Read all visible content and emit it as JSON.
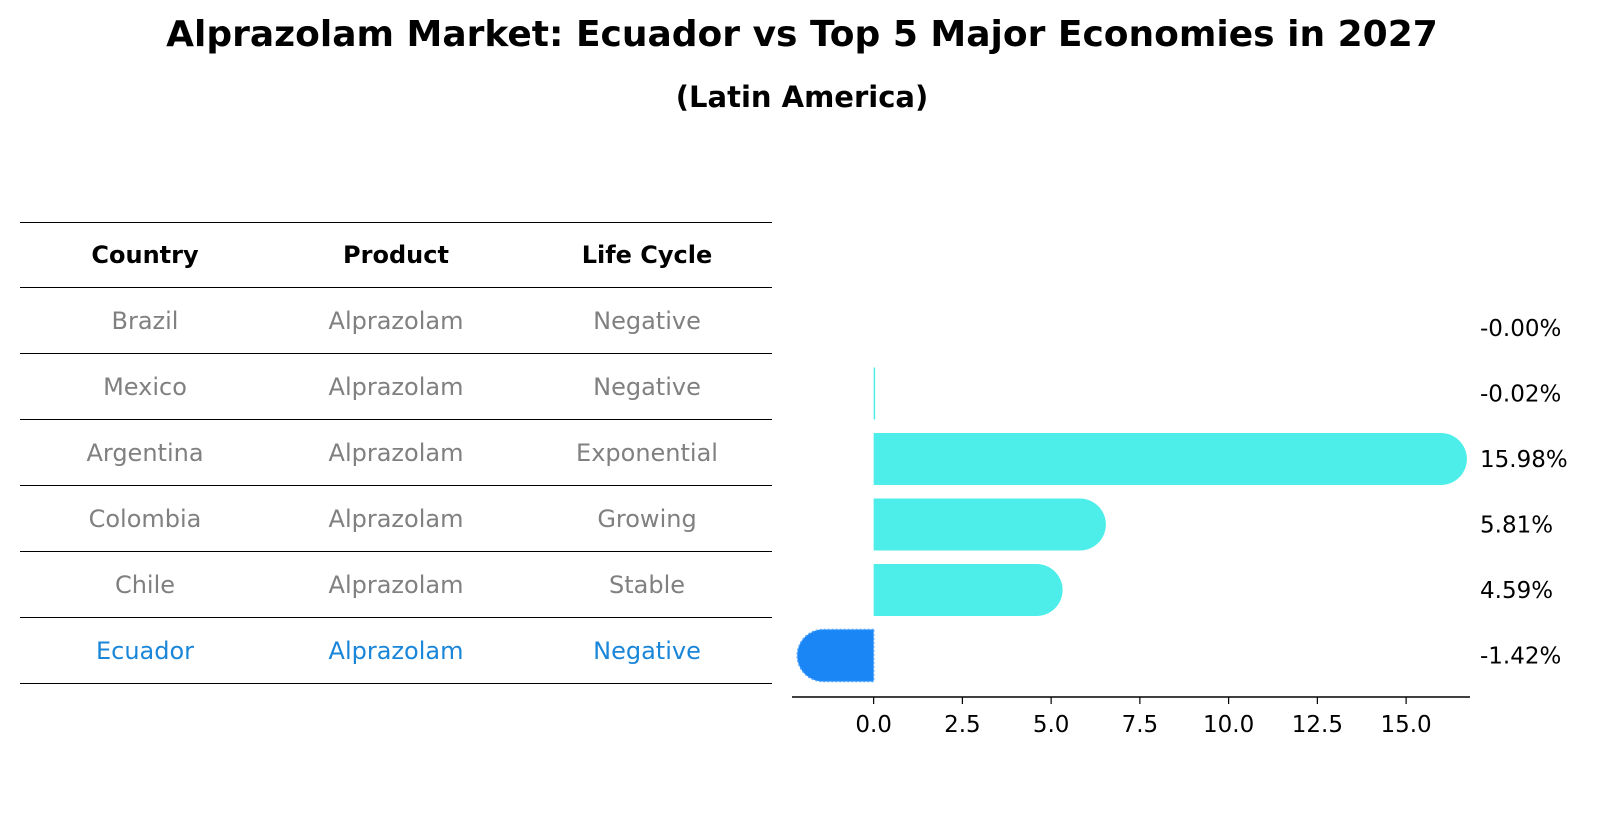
{
  "title": "Alprazolam Market: Ecuador vs Top 5 Major Economies in 2027",
  "subtitle": "(Latin America)",
  "table": {
    "headers": [
      "Country",
      "Product",
      "Life Cycle"
    ],
    "rows": [
      {
        "country": "Brazil",
        "product": "Alprazolam",
        "life_cycle": "Negative"
      },
      {
        "country": "Mexico",
        "product": "Alprazolam",
        "life_cycle": "Negative"
      },
      {
        "country": "Argentina",
        "product": "Alprazolam",
        "life_cycle": "Exponential"
      },
      {
        "country": "Colombia",
        "product": "Alprazolam",
        "life_cycle": "Growing"
      },
      {
        "country": "Chile",
        "product": "Alprazolam",
        "life_cycle": "Stable"
      },
      {
        "country": "Ecuador",
        "product": "Alprazolam",
        "life_cycle": "Negative"
      }
    ]
  },
  "chart_data": {
    "type": "bar",
    "orientation": "horizontal",
    "categories": [
      "Brazil",
      "Mexico",
      "Argentina",
      "Colombia",
      "Chile",
      "Ecuador"
    ],
    "values": [
      -0.0,
      -0.02,
      15.98,
      5.81,
      4.59,
      -1.42
    ],
    "labels": [
      "-0.00%",
      "-0.02%",
      "15.98%",
      "5.81%",
      "4.59%",
      "-1.42%"
    ],
    "xlim": [
      -2.3,
      16.8
    ],
    "xticks": [
      0.0,
      2.5,
      5.0,
      7.5,
      10.0,
      12.5,
      15.0
    ],
    "xtick_labels": [
      "0.0",
      "2.5",
      "5.0",
      "7.5",
      "10.0",
      "12.5",
      "15.0"
    ],
    "grid": false,
    "colors": {
      "default": "#4deeea",
      "highlight": "#1a86f5"
    },
    "highlight_category": "Ecuador"
  },
  "colors": {
    "highlight_text": "#1a86d9",
    "muted_text": "#808080"
  }
}
